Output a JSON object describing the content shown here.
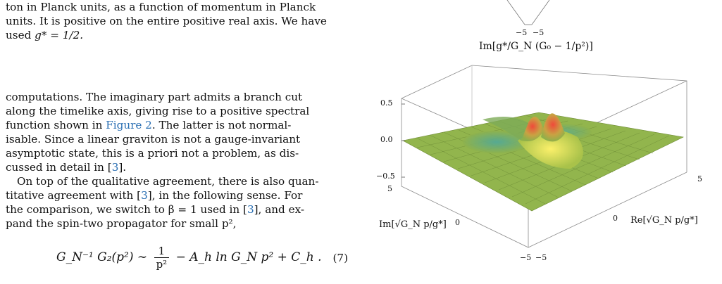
{
  "caption": {
    "line1": "ton in Planck units, as a function of momentum in Planck",
    "line2": "units. It is positive on the entire positive real axis. We have",
    "line3_prefix": "used ",
    "line3_math": "g* = 1/2."
  },
  "body": {
    "p1_l1": "computations. The imaginary part admits a branch cut",
    "p1_l2": "along the timelike axis, giving rise to a positive spectral",
    "p1_l3_a": "function shown in ",
    "p1_l3_link": "Figure 2",
    "p1_l3_b": ". The latter is not normal-",
    "p1_l4": "isable. Since a linear graviton is not a gauge-invariant",
    "p1_l5": "asymptotic state, this is a priori not a problem, as dis-",
    "p1_l6_a": "cussed in detail in [",
    "p1_l6_cite": "3",
    "p1_l6_b": "].",
    "p2_l1": "On top of the qualitative agreement, there is also quan-",
    "p2_l2_a": "titative agreement with [",
    "p2_l2_cite": "3",
    "p2_l2_b": "], in the following sense. For",
    "p2_l3_a": "the comparison, we switch to β = 1 used in [",
    "p2_l3_cite": "3",
    "p2_l3_b": "], and ex-",
    "p2_l4": "pand the spin-two propagator for small p²,"
  },
  "equation": {
    "lhs": "G_N⁻¹ G₂(p²) ∼",
    "frac_num": "1",
    "frac_den": "p²",
    "rhs": "− A_h ln G_N p² + C_h .",
    "number": "(7)"
  },
  "figure": {
    "title": "Im[g*/G_N (G₀ − 1/p²)]",
    "top_ticks": [
      "−5",
      "−5"
    ],
    "z_ticks": [
      "0.5",
      "0.0",
      "−0.5"
    ],
    "left_axis_label": "Im[√G_N p/g*]",
    "right_axis_label": "Re[√G_N p/g*]",
    "left_ticks": [
      "5",
      "0",
      "−5"
    ],
    "right_ticks": [
      "5",
      "0",
      "−5"
    ]
  }
}
